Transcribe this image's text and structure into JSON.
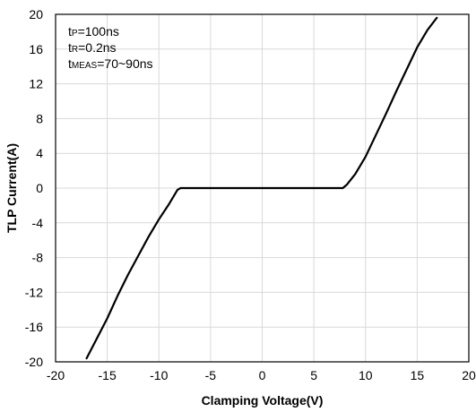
{
  "chart_data": {
    "type": "line",
    "title": "",
    "xlabel": "Clamping Voltage(V)",
    "ylabel": "TLP Current(A)",
    "xlim": [
      -20,
      20
    ],
    "ylim": [
      -20,
      20
    ],
    "xticks": [
      "-20",
      "-15",
      "-10",
      "-5",
      "0",
      "5",
      "10",
      "15",
      "20"
    ],
    "yticks": [
      "20",
      "16",
      "12",
      "8",
      "4",
      "0",
      "-4",
      "-8",
      "-12",
      "-16",
      "-20"
    ],
    "grid": true,
    "legend": "none",
    "annotations": [
      {
        "main": "t",
        "sub": "P",
        "rest": "=100ns"
      },
      {
        "main": "t",
        "sub": "R",
        "rest": "=0.2ns"
      },
      {
        "main": "t",
        "sub": "MEAS",
        "rest": "=70~90ns"
      }
    ],
    "series": [
      {
        "color": "#000000",
        "x": [
          -17.0,
          -16.0,
          -15.0,
          -14.0,
          -13.0,
          -12.0,
          -11.0,
          -10.0,
          -9.0,
          -8.2,
          -7.9,
          -5.0,
          0.0,
          5.0,
          7.8,
          8.2,
          9.0,
          10.0,
          11.0,
          12.0,
          13.0,
          14.0,
          15.0,
          16.0,
          16.9
        ],
        "y": [
          -19.6,
          -17.3,
          -15.0,
          -12.4,
          -10.0,
          -7.8,
          -5.6,
          -3.6,
          -1.8,
          -0.2,
          0.0,
          0.0,
          0.0,
          0.0,
          0.0,
          0.4,
          1.6,
          3.6,
          6.1,
          8.6,
          11.2,
          13.7,
          16.2,
          18.2,
          19.6
        ]
      }
    ]
  }
}
